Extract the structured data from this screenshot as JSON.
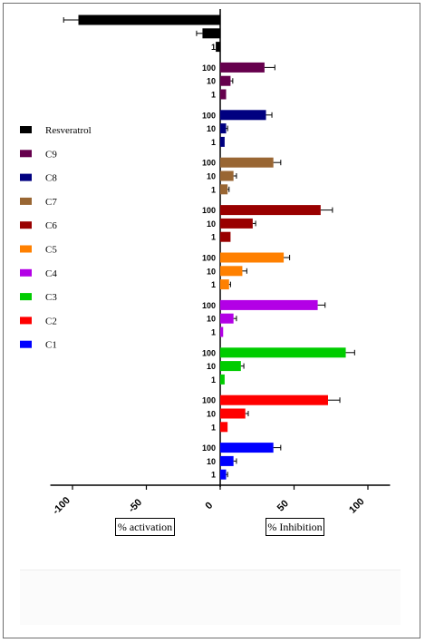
{
  "chart_data": {
    "type": "bar",
    "orientation": "horizontal",
    "xlim": [
      -115,
      115
    ],
    "x_ticks": [
      -100,
      -50,
      0,
      50,
      100
    ],
    "x_tick_labels": [
      "-100",
      "-50",
      "0",
      "50",
      "100"
    ],
    "axis_labels": {
      "left": "% activation",
      "right": "% Inhibition"
    },
    "dose_labels": [
      "100",
      "10",
      "1"
    ],
    "legend_position": "left",
    "groups": [
      {
        "name": "Resveratrol",
        "color": "#000000",
        "values": [
          -96,
          -12,
          -3
        ],
        "errors": [
          10,
          4,
          0
        ],
        "show_dose_labels": false
      },
      {
        "name": "C9",
        "color": "#66004d",
        "values": [
          30,
          7,
          4
        ],
        "errors": [
          7,
          1.5,
          0
        ],
        "show_dose_labels": true
      },
      {
        "name": "C8",
        "color": "#000080",
        "values": [
          31,
          4,
          3
        ],
        "errors": [
          4,
          1,
          0
        ],
        "show_dose_labels": true
      },
      {
        "name": "C7",
        "color": "#996633",
        "values": [
          36,
          9,
          5
        ],
        "errors": [
          5,
          2,
          1
        ],
        "show_dose_labels": true
      },
      {
        "name": "C6",
        "color": "#990000",
        "values": [
          68,
          22,
          7
        ],
        "errors": [
          8,
          2,
          0
        ],
        "show_dose_labels": true
      },
      {
        "name": "C5",
        "color": "#ff8000",
        "values": [
          43,
          15,
          6
        ],
        "errors": [
          4,
          3,
          1
        ],
        "show_dose_labels": true
      },
      {
        "name": "C4",
        "color": "#b300e6",
        "values": [
          66,
          9,
          2
        ],
        "errors": [
          5,
          2,
          0
        ],
        "show_dose_labels": true
      },
      {
        "name": "C3",
        "color": "#00cc00",
        "values": [
          85,
          14,
          3
        ],
        "errors": [
          6,
          2,
          0
        ],
        "show_dose_labels": true
      },
      {
        "name": "C2",
        "color": "#ff0000",
        "values": [
          73,
          17,
          5
        ],
        "errors": [
          8,
          2,
          0
        ],
        "show_dose_labels": true
      },
      {
        "name": "C1",
        "color": "#0000ff",
        "values": [
          36,
          9,
          4
        ],
        "errors": [
          5,
          2,
          1
        ],
        "show_dose_labels": true
      }
    ],
    "legend": [
      {
        "name": "Resveratrol",
        "color": "#000000"
      },
      {
        "name": "C9",
        "color": "#66004d"
      },
      {
        "name": "C8",
        "color": "#000080"
      },
      {
        "name": "C7",
        "color": "#996633"
      },
      {
        "name": "C6",
        "color": "#990000"
      },
      {
        "name": "C5",
        "color": "#ff8000"
      },
      {
        "name": "C4",
        "color": "#b300e6"
      },
      {
        "name": "C3",
        "color": "#00cc00"
      },
      {
        "name": "C2",
        "color": "#ff0000"
      },
      {
        "name": "C1",
        "color": "#0000ff"
      }
    ]
  }
}
